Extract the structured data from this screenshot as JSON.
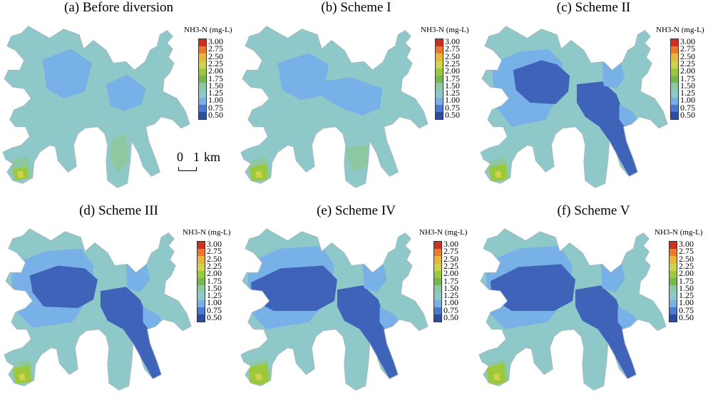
{
  "legend": {
    "title": "NH3-N (mg-L)",
    "ticks": [
      "3.00",
      "2.75",
      "2.50",
      "2.25",
      "2.00",
      "1.75",
      "1.50",
      "1.25",
      "1.00",
      "0.75",
      "0.50"
    ],
    "colors": [
      "#c8321e",
      "#e87a2a",
      "#e6b83a",
      "#cfd24a",
      "#9cc83c",
      "#78b84a",
      "#8ec8a0",
      "#8ec8c8",
      "#78b0e8",
      "#4c78d0",
      "#2c4ca0"
    ]
  },
  "scalebar": {
    "zero": "0",
    "one": "1",
    "unit": "km"
  },
  "panels": [
    {
      "title": "(a) Before diversion",
      "scheme": "a"
    },
    {
      "title": "(b) Scheme I",
      "scheme": "b"
    },
    {
      "title": "(c) Scheme II",
      "scheme": "c"
    },
    {
      "title": "(d) Scheme III",
      "scheme": "d"
    },
    {
      "title": "(e) Scheme IV",
      "scheme": "e"
    },
    {
      "title": "(f) Scheme V",
      "scheme": "f"
    }
  ],
  "colors": {
    "base_cyan": "#8ec8c8",
    "light_blue": "#78b0e8",
    "dark_blue": "#3f63b8",
    "green_mid": "#8ec8a0",
    "green_high": "#9cc83c",
    "yellow_spot": "#cfd24a",
    "outline": "#a8b8c0"
  }
}
